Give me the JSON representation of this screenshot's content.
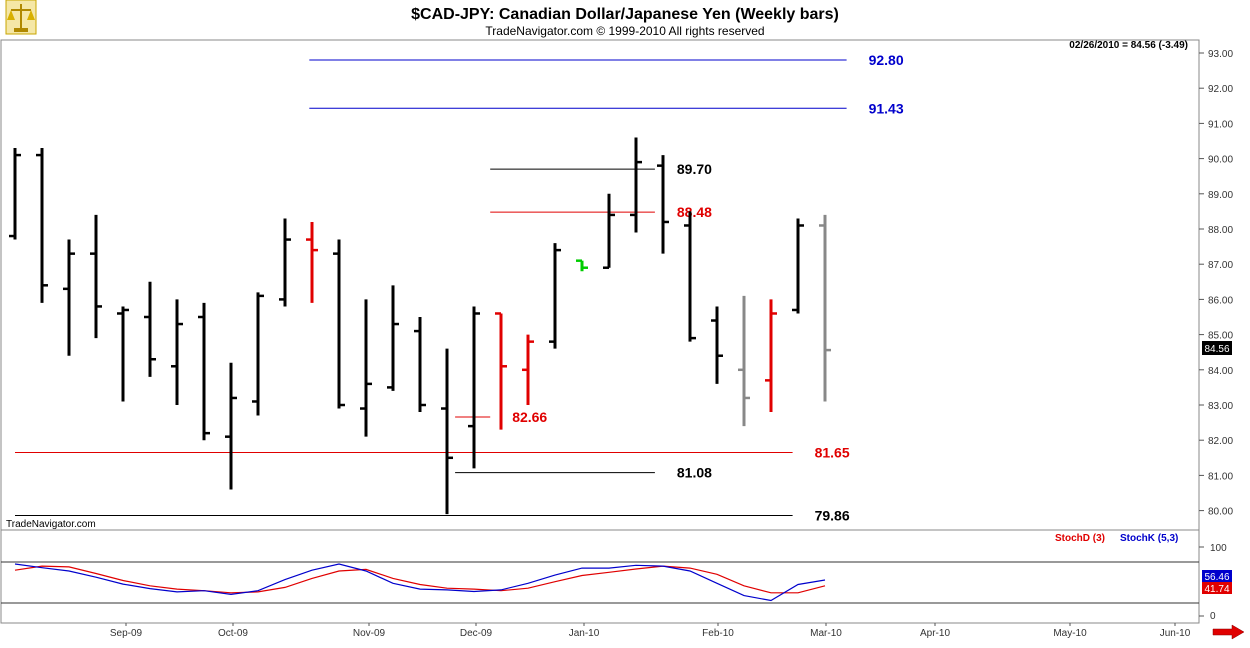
{
  "header": {
    "title": "$CAD-JPY:  Canadian Dollar/Japanese Yen  (Weekly bars)",
    "subtitle": "TradeNavigator.com © 1999-2010 All rights reserved"
  },
  "footer": {
    "brand": "TradeNavigator.com"
  },
  "icons": {
    "logo": "scales-icon",
    "scroll": "right-arrow-icon"
  },
  "colors": {
    "black": "#000000",
    "red": "#e00000",
    "blue": "#0000cc",
    "green": "#00cc00",
    "gray": "#888888",
    "stochD": "#e00000",
    "stochK": "#0000cc"
  },
  "chart_data": {
    "type": "ohlc",
    "last_quote": "02/26/2010 = 84.56 (-3.49)",
    "last_price_label": "84.56",
    "y_ticks": [
      "93.00",
      "92.00",
      "91.00",
      "90.00",
      "89.00",
      "88.00",
      "87.00",
      "86.00",
      "85.00",
      "84.00",
      "83.00",
      "82.00",
      "81.00",
      "80.00"
    ],
    "ylim": [
      79.86,
      93.4
    ],
    "x_ticks": [
      "Sep-09",
      "Oct-09",
      "Nov-09",
      "Dec-09",
      "Jan-10",
      "Feb-10",
      "Mar-10",
      "Apr-10",
      "May-10",
      "Jun-10"
    ],
    "bars": [
      {
        "open": 87.8,
        "high": 90.3,
        "low": 87.7,
        "close": 90.1,
        "color": "black"
      },
      {
        "open": 90.1,
        "high": 90.3,
        "low": 85.9,
        "close": 86.4,
        "color": "black"
      },
      {
        "open": 86.3,
        "high": 87.7,
        "low": 84.4,
        "close": 87.3,
        "color": "black"
      },
      {
        "open": 87.3,
        "high": 88.4,
        "low": 84.9,
        "close": 85.8,
        "color": "black"
      },
      {
        "open": 85.6,
        "high": 85.8,
        "low": 83.1,
        "close": 85.7,
        "color": "black"
      },
      {
        "open": 85.5,
        "high": 86.5,
        "low": 83.8,
        "close": 84.3,
        "color": "black"
      },
      {
        "open": 84.1,
        "high": 86.0,
        "low": 83.0,
        "close": 85.3,
        "color": "black"
      },
      {
        "open": 85.5,
        "high": 85.9,
        "low": 82.0,
        "close": 82.2,
        "color": "black"
      },
      {
        "open": 82.1,
        "high": 84.2,
        "low": 80.6,
        "close": 83.2,
        "color": "black"
      },
      {
        "open": 83.1,
        "high": 86.2,
        "low": 82.7,
        "close": 86.1,
        "color": "black"
      },
      {
        "open": 86.0,
        "high": 88.3,
        "low": 85.8,
        "close": 87.7,
        "color": "black"
      },
      {
        "open": 87.7,
        "high": 88.2,
        "low": 85.9,
        "close": 87.4,
        "color": "red"
      },
      {
        "open": 87.3,
        "high": 87.7,
        "low": 82.9,
        "close": 83.0,
        "color": "black"
      },
      {
        "open": 82.9,
        "high": 86.0,
        "low": 82.1,
        "close": 83.6,
        "color": "black"
      },
      {
        "open": 83.5,
        "high": 86.4,
        "low": 83.4,
        "close": 85.3,
        "color": "black"
      },
      {
        "open": 85.1,
        "high": 85.5,
        "low": 82.8,
        "close": 83.0,
        "color": "black"
      },
      {
        "open": 82.9,
        "high": 84.6,
        "low": 79.9,
        "close": 81.5,
        "color": "black"
      },
      {
        "open": 82.4,
        "high": 85.8,
        "low": 81.2,
        "close": 85.6,
        "color": "black"
      },
      {
        "open": 85.6,
        "high": 85.6,
        "low": 82.3,
        "close": 84.1,
        "color": "red"
      },
      {
        "open": 84.0,
        "high": 85.0,
        "low": 83.0,
        "close": 84.8,
        "color": "red"
      },
      {
        "open": 84.8,
        "high": 87.6,
        "low": 84.6,
        "close": 87.4,
        "color": "black"
      },
      {
        "open": 87.1,
        "high": 87.1,
        "low": 86.8,
        "close": 86.9,
        "color": "green"
      },
      {
        "open": 86.9,
        "high": 89.0,
        "low": 86.9,
        "close": 88.4,
        "color": "black"
      },
      {
        "open": 88.4,
        "high": 90.6,
        "low": 87.9,
        "close": 89.9,
        "color": "black"
      },
      {
        "open": 89.8,
        "high": 90.1,
        "low": 87.3,
        "close": 88.2,
        "color": "black"
      },
      {
        "open": 88.1,
        "high": 88.5,
        "low": 84.8,
        "close": 84.9,
        "color": "black"
      },
      {
        "open": 85.4,
        "high": 85.8,
        "low": 83.6,
        "close": 84.4,
        "color": "black"
      },
      {
        "open": 84.0,
        "high": 86.1,
        "low": 82.4,
        "close": 83.2,
        "color": "gray"
      },
      {
        "open": 83.7,
        "high": 86.0,
        "low": 82.8,
        "close": 85.6,
        "color": "red"
      },
      {
        "open": 85.7,
        "high": 88.3,
        "low": 85.6,
        "close": 88.1,
        "color": "black"
      },
      {
        "open": 88.1,
        "high": 88.4,
        "low": 83.1,
        "close": 84.56,
        "color": "gray"
      }
    ],
    "levels": [
      {
        "value": 92.8,
        "label": "92.80",
        "color": "blue",
        "start_bar": 10.9,
        "end_bar": 30.8
      },
      {
        "value": 91.43,
        "label": "91.43",
        "color": "blue",
        "start_bar": 10.9,
        "end_bar": 30.8
      },
      {
        "value": 89.7,
        "label": "89.70",
        "color": "black",
        "start_bar": 17.6,
        "end_bar": 23.7
      },
      {
        "value": 88.48,
        "label": "88.48",
        "color": "red",
        "start_bar": 17.6,
        "end_bar": 23.7
      },
      {
        "value": 82.66,
        "label": "82.66",
        "color": "red",
        "start_bar": 17.6,
        "end_bar": 16.3
      },
      {
        "value": 81.65,
        "label": "81.65",
        "color": "red",
        "start_bar": 0,
        "end_bar": 28.8
      },
      {
        "value": 81.08,
        "label": "81.08",
        "color": "black",
        "start_bar": 16.3,
        "end_bar": 23.7
      },
      {
        "value": 79.86,
        "label": "79.86",
        "color": "black",
        "start_bar": 0,
        "end_bar": 28.8
      }
    ],
    "stochastic": {
      "legend": [
        {
          "name": "StochD (3)",
          "color": "red"
        },
        {
          "name": "StochK (5,3)",
          "color": "blue"
        }
      ],
      "ylim": [
        0,
        100
      ],
      "y_ticks": [
        "100",
        "0"
      ],
      "last_k_label": "56.46",
      "last_d_label": "41.74",
      "k": [
        95,
        86,
        78,
        63,
        46,
        35,
        27,
        30,
        21,
        30,
        57,
        80,
        95,
        78,
        48,
        34,
        32,
        28,
        32,
        48,
        68,
        85,
        85,
        92,
        90,
        78,
        48,
        18,
        6,
        45,
        56
      ],
      "d": [
        80,
        90,
        88,
        72,
        55,
        42,
        34,
        30,
        25,
        27,
        38,
        60,
        78,
        82,
        60,
        45,
        36,
        34,
        30,
        36,
        52,
        67,
        75,
        83,
        90,
        85,
        70,
        42,
        25,
        25,
        42
      ]
    }
  }
}
